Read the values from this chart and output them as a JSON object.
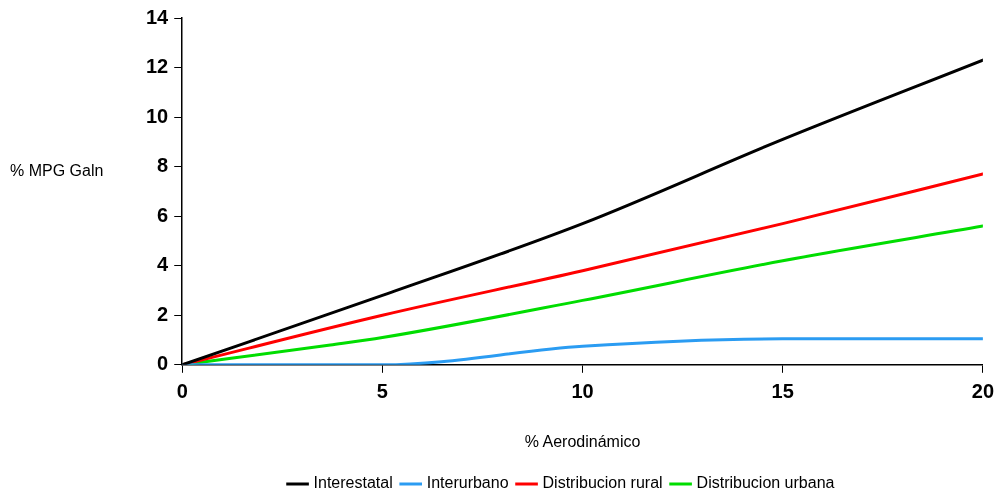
{
  "chart_data": {
    "type": "line",
    "xlabel": "% Aerodinámico",
    "ylabel": "% MPG Galn",
    "xlim": [
      0,
      20
    ],
    "xticks": [
      0,
      5,
      10,
      15,
      20
    ],
    "ylim": [
      0,
      14
    ],
    "yticks": [
      0,
      2,
      4,
      6,
      8,
      10,
      12,
      14
    ],
    "grid": false,
    "legend": "bottom",
    "marker": "none",
    "line_style": "solid",
    "series": [
      {
        "name": "Interestatal",
        "color": "#000000",
        "x": [
          0,
          5,
          10,
          15,
          20
        ],
        "values": [
          0,
          2.8,
          5.7,
          9.1,
          12.3
        ]
      },
      {
        "name": "Interurbano",
        "color": "#2b9cf2",
        "x": [
          0,
          2.5,
          5,
          10,
          15,
          20
        ],
        "values": [
          0,
          0,
          0,
          0.75,
          1.05,
          1.05
        ]
      },
      {
        "name": "Distribucion rural",
        "color": "#ff0000",
        "x": [
          0,
          5,
          10,
          15,
          20
        ],
        "values": [
          0,
          2.0,
          3.8,
          5.7,
          7.7
        ]
      },
      {
        "name": "Distribucion urbana",
        "color": "#00dd00",
        "x": [
          0,
          3.7,
          5,
          10,
          15,
          20
        ],
        "values": [
          0,
          0.8,
          1.1,
          2.6,
          4.2,
          5.6
        ]
      }
    ]
  }
}
